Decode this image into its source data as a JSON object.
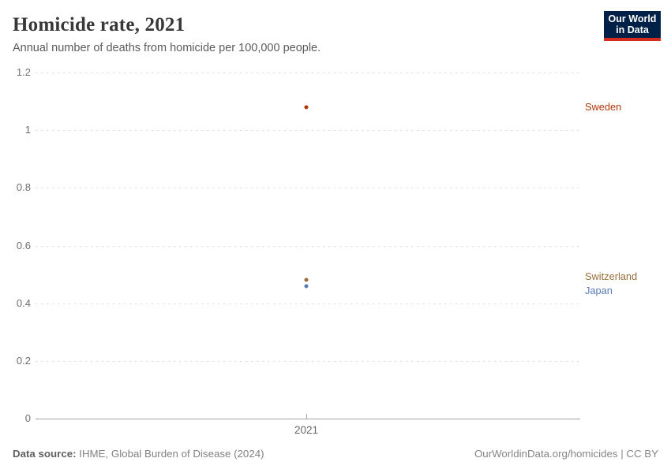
{
  "header": {
    "title": "Homicide rate, 2021",
    "subtitle": "Annual number of deaths from homicide per 100,000 people.",
    "logo": {
      "line1": "Our World",
      "line2": "in Data",
      "bg_color": "#002147",
      "accent_color": "#d42b21"
    }
  },
  "chart_data": {
    "type": "scatter",
    "title": "Homicide rate, 2021",
    "subtitle": "Annual number of deaths from homicide per 100,000 people.",
    "xlabel": "",
    "ylabel": "",
    "x": [
      2021
    ],
    "xtick_labels": [
      "2021"
    ],
    "ylim": [
      0,
      1.2
    ],
    "yticks": [
      0,
      0.2,
      0.4,
      0.6,
      0.8,
      1,
      1.2
    ],
    "ytick_labels": [
      "0",
      "0.2",
      "0.4",
      "0.6",
      "0.8",
      "1",
      "1.2"
    ],
    "grid": "horizontal-dashed",
    "legend_position": "right-entity-labels",
    "series": [
      {
        "name": "Sweden",
        "year": 2021,
        "value": 1.08,
        "color": "#b13507",
        "label_dy": 0
      },
      {
        "name": "Switzerland",
        "year": 2021,
        "value": 0.48,
        "color": "#996d39",
        "label_dy": -4
      },
      {
        "name": "Japan",
        "year": 2021,
        "value": 0.46,
        "color": "#5779b3",
        "label_dy": 6
      }
    ]
  },
  "footer": {
    "source_label": "Data source:",
    "source_text": " IHME, Global Burden of Disease (2024)",
    "credit": "OurWorldinData.org/homicides | CC BY"
  }
}
